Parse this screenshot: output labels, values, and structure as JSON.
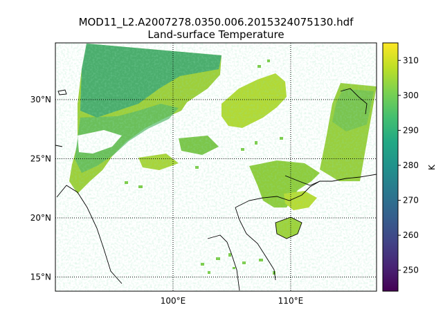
{
  "figure": {
    "title_line1": "MOD11_L2.A2007278.0350.006.2015324075130.hdf",
    "title_line2": "Land-surface Temperature"
  },
  "map": {
    "lon_range": [
      90.0,
      117.3
    ],
    "lat_range": [
      13.8,
      34.8
    ],
    "lat_ticks": [
      {
        "value": 30,
        "label": "30°N"
      },
      {
        "value": 25,
        "label": "25°N"
      },
      {
        "value": 20,
        "label": "20°N"
      },
      {
        "value": 15,
        "label": "15°N"
      }
    ],
    "lon_ticks": [
      {
        "value": 100,
        "label": "100°E"
      },
      {
        "value": 110,
        "label": "110°E"
      }
    ],
    "gridlines": "dotted"
  },
  "colorbar": {
    "label": "K",
    "colormap": "viridis",
    "range": [
      244,
      315
    ],
    "ticks": [
      {
        "value": 250,
        "label": "250"
      },
      {
        "value": 260,
        "label": "260"
      },
      {
        "value": 270,
        "label": "270"
      },
      {
        "value": 280,
        "label": "280"
      },
      {
        "value": 290,
        "label": "290"
      },
      {
        "value": 300,
        "label": "300"
      },
      {
        "value": 310,
        "label": "310"
      }
    ]
  }
}
